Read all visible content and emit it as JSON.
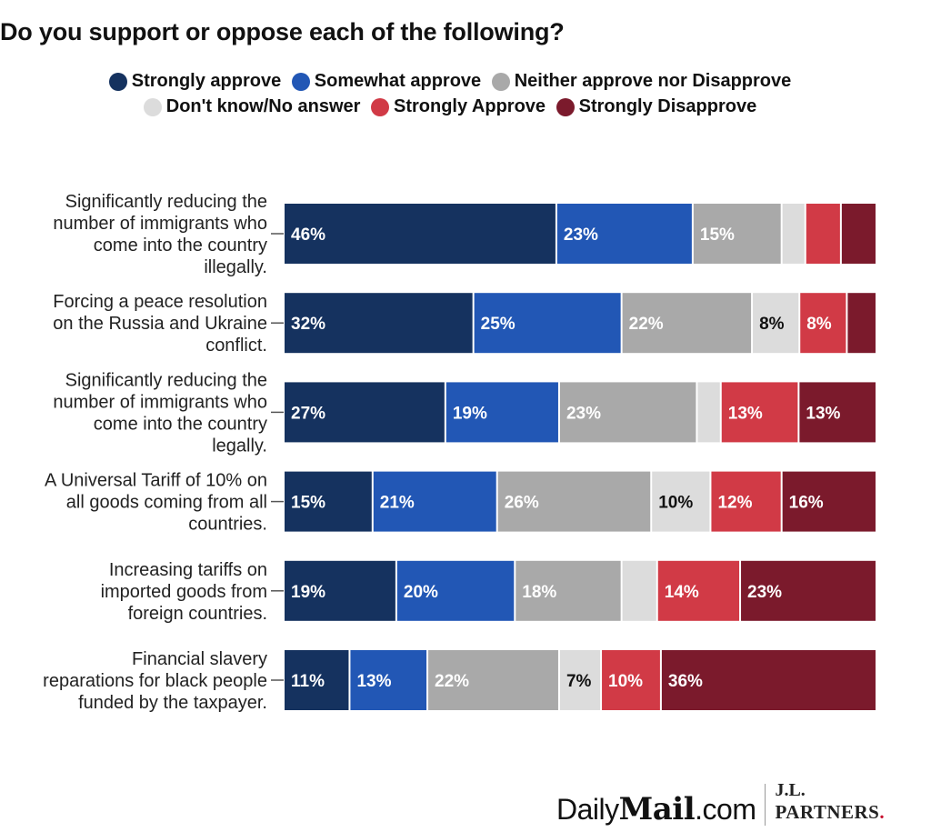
{
  "chart_data": {
    "type": "bar",
    "orientation": "horizontal-stacked",
    "title": "Do you support or oppose each of the following?",
    "legend_placement": "top",
    "grid": false,
    "xlim": [
      0,
      100
    ],
    "series": [
      {
        "name": "Strongly approve",
        "color": "#15325f"
      },
      {
        "name": "Somewhat approve",
        "color": "#2257b5"
      },
      {
        "name": "Neither approve nor Disapprove",
        "color": "#a9a9a9"
      },
      {
        "name": "Don't know/No answer",
        "color": "#dcdcdc"
      },
      {
        "name": "Strongly Approve",
        "color": "#d13a46"
      },
      {
        "name": "Strongly Disapprove",
        "color": "#7b1a2c"
      }
    ],
    "categories": [
      {
        "label": [
          "Significantly reducing the",
          "number of immigrants who",
          "come into the country",
          "illegally."
        ],
        "values": [
          46,
          23,
          15,
          4,
          6,
          6
        ],
        "labels": [
          "46%",
          "23%",
          "15%",
          "",
          "",
          ""
        ]
      },
      {
        "label": [
          "Forcing a peace resolution",
          "on the Russia and Ukraine",
          "conflict."
        ],
        "values": [
          32,
          25,
          22,
          8,
          8,
          5
        ],
        "labels": [
          "32%",
          "25%",
          "22%",
          "8%",
          "8%",
          ""
        ]
      },
      {
        "label": [
          "Significantly reducing the",
          "number of immigrants who",
          "come into the country",
          "legally."
        ],
        "values": [
          27,
          19,
          23,
          4,
          13,
          13
        ],
        "labels": [
          "27%",
          "19%",
          "23%",
          "",
          "13%",
          "13%"
        ]
      },
      {
        "label": [
          "A Universal Tariff of 10% on",
          "all goods coming from all",
          "countries."
        ],
        "values": [
          15,
          21,
          26,
          10,
          12,
          16
        ],
        "labels": [
          "15%",
          "21%",
          "26%",
          "10%",
          "12%",
          "16%"
        ]
      },
      {
        "label": [
          "Increasing tariffs on",
          "imported goods from",
          "foreign countries."
        ],
        "values": [
          19,
          20,
          18,
          6,
          14,
          23
        ],
        "labels": [
          "19%",
          "20%",
          "18%",
          "",
          "14%",
          "23%"
        ]
      },
      {
        "label": [
          "Financial slavery",
          "reparations for black people",
          "funded by the taxpayer."
        ],
        "values": [
          11,
          13,
          22,
          7,
          10,
          36
        ],
        "labels": [
          "11%",
          "13%",
          "22%",
          "7%",
          "10%",
          "36%"
        ]
      }
    ]
  },
  "footer": {
    "logo_a": "Daily",
    "logo_b": "Mail",
    "logo_c": ".com",
    "partner_line1": "J.L.",
    "partner_line2": "PARTNERS",
    "partner_dot": "."
  }
}
